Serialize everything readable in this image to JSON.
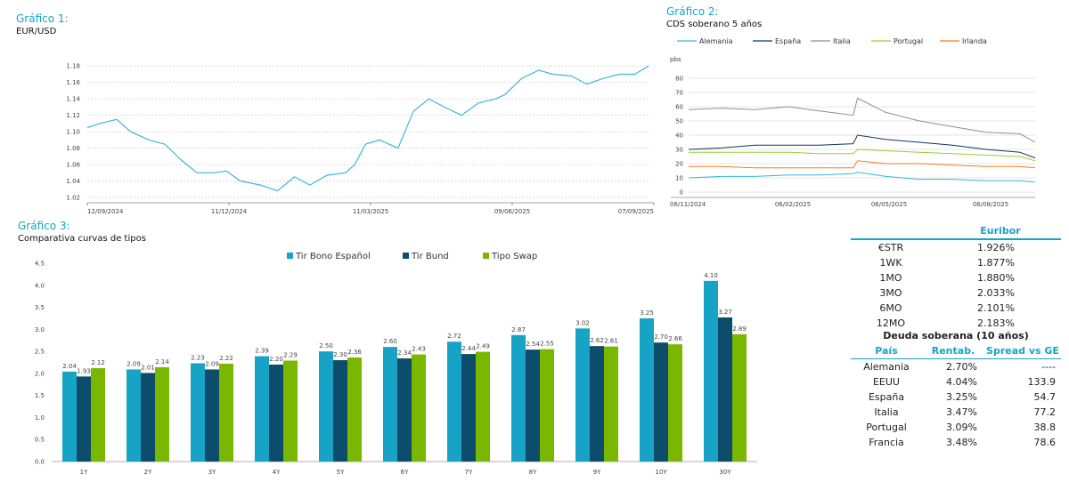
{
  "chart1": {
    "title": "Gráfico 1:",
    "subtitle": "EUR/USD"
  },
  "chart2": {
    "title": "Gráfico 2:",
    "subtitle": "CDS soberano 5 años"
  },
  "chart3": {
    "title": "Gráfico 3:",
    "subtitle": "Comparativa curvas de tipos"
  },
  "colors": {
    "accent": "#16a3c6",
    "bund": "#0b4d6b",
    "swap": "#7ab800",
    "line1": "#3fb7d8",
    "alemania": "#38b6d8",
    "espana": "#10365a",
    "italia": "#8e8e8e",
    "portugal": "#9acd32",
    "irlanda": "#f47b20"
  },
  "chart_data": [
    {
      "type": "line",
      "title": "Gráfico 1:",
      "subtitle": "EUR/USD",
      "x_ticks": [
        "12/09/2024",
        "11/12/2024",
        "11/03/2025",
        "09/06/2025",
        "07/09/2025"
      ],
      "y_ticks": [
        "1.02",
        "1.04",
        "1.06",
        "1.08",
        "1.10",
        "1.12",
        "1.14",
        "1.16",
        "1.18"
      ],
      "ylim": [
        1.02,
        1.19
      ],
      "grid": true,
      "series": [
        {
          "x": [
            "2024-09-12",
            "2024-09-20",
            "2024-10-01",
            "2024-10-10",
            "2024-10-22",
            "2024-11-01",
            "2024-11-12",
            "2024-11-22",
            "2024-12-02",
            "2024-12-11",
            "2024-12-20",
            "2025-01-02",
            "2025-01-13",
            "2025-01-24",
            "2025-02-03",
            "2025-02-14",
            "2025-02-26",
            "2025-03-04",
            "2025-03-11",
            "2025-03-20",
            "2025-04-01",
            "2025-04-11",
            "2025-04-21",
            "2025-05-01",
            "2025-05-12",
            "2025-05-23",
            "2025-06-03",
            "2025-06-09",
            "2025-06-20",
            "2025-07-01",
            "2025-07-10",
            "2025-07-22",
            "2025-08-01",
            "2025-08-12",
            "2025-08-22",
            "2025-09-01",
            "2025-09-10"
          ],
          "y": [
            1.105,
            1.11,
            1.115,
            1.1,
            1.09,
            1.085,
            1.065,
            1.05,
            1.05,
            1.052,
            1.04,
            1.035,
            1.028,
            1.045,
            1.035,
            1.047,
            1.05,
            1.06,
            1.085,
            1.09,
            1.08,
            1.125,
            1.14,
            1.13,
            1.12,
            1.135,
            1.14,
            1.145,
            1.165,
            1.175,
            1.17,
            1.168,
            1.158,
            1.165,
            1.17,
            1.17,
            1.18
          ]
        }
      ]
    },
    {
      "type": "line",
      "title": "Gráfico 2:",
      "subtitle": "CDS soberano 5 años",
      "ylabel": "pbs",
      "x_ticks": [
        "06/11/2024",
        "06/02/2025",
        "06/05/2025",
        "06/08/2025"
      ],
      "y_ticks": [
        "0",
        "10",
        "20",
        "30",
        "40",
        "50",
        "60",
        "70",
        "80"
      ],
      "ylim": [
        0,
        80
      ],
      "grid": true,
      "legend": "top",
      "x": [
        "2024-11-06",
        "2024-12-06",
        "2025-01-06",
        "2025-02-06",
        "2025-03-06",
        "2025-04-06",
        "2025-04-10",
        "2025-05-06",
        "2025-06-06",
        "2025-07-06",
        "2025-08-06",
        "2025-09-06",
        "2025-09-20"
      ],
      "series": [
        {
          "name": "Alemania",
          "values": [
            10,
            11,
            11,
            12,
            12,
            13,
            14,
            11,
            9,
            9,
            8,
            8,
            7
          ]
        },
        {
          "name": "España",
          "values": [
            30,
            31,
            33,
            33,
            33,
            34,
            40,
            37,
            35,
            33,
            30,
            28,
            24
          ]
        },
        {
          "name": "Italia",
          "values": [
            58,
            59,
            58,
            60,
            57,
            54,
            66,
            56,
            50,
            46,
            42,
            41,
            35
          ]
        },
        {
          "name": "Portugal",
          "values": [
            28,
            28,
            28,
            28,
            27,
            27,
            30,
            29,
            28,
            27,
            26,
            25,
            22
          ]
        },
        {
          "name": "Irlanda",
          "values": [
            18,
            18,
            17,
            17,
            17,
            17,
            22,
            20,
            20,
            19,
            18,
            18,
            17
          ]
        }
      ]
    },
    {
      "type": "bar",
      "title": "Gráfico 3:",
      "subtitle": "Comparativa curvas de tipos",
      "legend": "top",
      "categories": [
        "1Y",
        "2Y",
        "3Y",
        "4Y",
        "5Y",
        "6Y",
        "7Y",
        "8Y",
        "9Y",
        "10Y",
        "30Y"
      ],
      "y_ticks": [
        "0.0",
        "0.5",
        "1.0",
        "1.5",
        "2.0",
        "2.5",
        "3.0",
        "3.5",
        "4.0",
        "4.5"
      ],
      "ylim": [
        0,
        4.5
      ],
      "series": [
        {
          "name": "Tir Bono Español",
          "values": [
            2.04,
            2.09,
            2.23,
            2.39,
            2.5,
            2.6,
            2.72,
            2.87,
            3.02,
            3.25,
            4.1
          ],
          "labels": [
            "2.04",
            "2.09",
            "2.23",
            "2.39",
            "2.50",
            "2.60",
            "2.72",
            "2.87",
            "3.02",
            "3.25",
            "4.10"
          ]
        },
        {
          "name": "Tir Bund",
          "values": [
            1.93,
            2.01,
            2.09,
            2.2,
            2.3,
            2.34,
            2.44,
            2.54,
            2.62,
            2.7,
            3.27
          ],
          "labels": [
            "1.93",
            "2.01",
            "2.09",
            "2.20",
            "2.30",
            "2.34",
            "2.44",
            "2.54",
            "2.62",
            "2.70",
            "3.27"
          ]
        },
        {
          "name": "Tipo Swap",
          "values": [
            2.12,
            2.14,
            2.22,
            2.29,
            2.36,
            2.43,
            2.49,
            2.55,
            2.61,
            2.66,
            2.89
          ],
          "labels": [
            "2.12",
            "2.14",
            "2.22",
            "2.29",
            "2.36",
            "2.43",
            "2.49",
            "2.55",
            "2.61",
            "2.66",
            "2.89"
          ]
        }
      ]
    }
  ],
  "euribor": {
    "header": "Euribor",
    "rows": [
      {
        "label": "€STR",
        "value": "1.926%"
      },
      {
        "label": "1WK",
        "value": "1.877%"
      },
      {
        "label": "1MO",
        "value": "1.880%"
      },
      {
        "label": "3MO",
        "value": "2.033%"
      },
      {
        "label": "6MO",
        "value": "2.101%"
      },
      {
        "label": "12MO",
        "value": "2.183%"
      }
    ]
  },
  "deuda": {
    "header": "Deuda soberana (10 años)",
    "columns": [
      "País",
      "Rentab.",
      "Spread vs GE"
    ],
    "rows": [
      {
        "pais": "Alemania",
        "rentab": "2.70%",
        "spread": "----"
      },
      {
        "pais": "EEUU",
        "rentab": "4.04%",
        "spread": "133.9"
      },
      {
        "pais": "España",
        "rentab": "3.25%",
        "spread": "54.7"
      },
      {
        "pais": "Italia",
        "rentab": "3.47%",
        "spread": "77.2"
      },
      {
        "pais": "Portugal",
        "rentab": "3.09%",
        "spread": "38.8"
      },
      {
        "pais": "Francia",
        "rentab": "3.48%",
        "spread": "78.6"
      }
    ]
  }
}
